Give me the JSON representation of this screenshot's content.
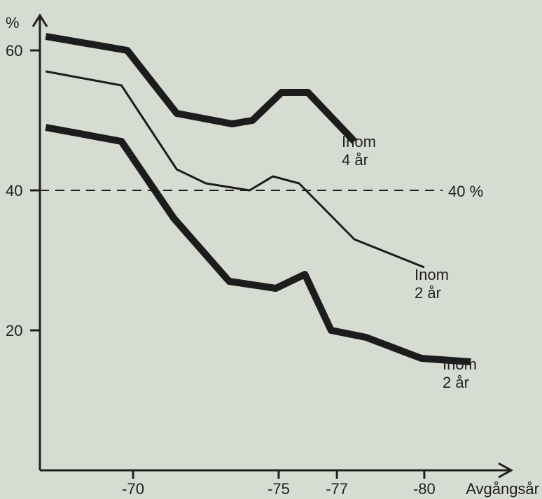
{
  "chart_data": {
    "type": "line",
    "y_unit": "%",
    "xlabel": "Avgångsår",
    "x_ticks": [
      {
        "value": 1970,
        "label": "-70"
      },
      {
        "value": 1975,
        "label": "-75"
      },
      {
        "value": 1977,
        "label": "-77"
      },
      {
        "value": 1980,
        "label": "-80"
      }
    ],
    "y_ticks": [
      {
        "value": 20,
        "label": "20"
      },
      {
        "value": 40,
        "label": "40"
      },
      {
        "value": 60,
        "label": "60"
      }
    ],
    "xlim": [
      1966.8,
      1982.6
    ],
    "ylim": [
      0,
      65
    ],
    "grid": false,
    "reference_line": {
      "value": 40,
      "label": "40 %",
      "style": "dashed"
    },
    "series": [
      {
        "label_lines": [
          "Inom",
          "4 år"
        ],
        "weight": "heavy",
        "x": [
          1967,
          1969.8,
          1971.5,
          1973.4,
          1974.1,
          1975.1,
          1976.0,
          1977.6
        ],
        "y": [
          62,
          60,
          51,
          49.5,
          50,
          54,
          54,
          47
        ]
      },
      {
        "label_lines": [
          "Inom",
          "2 år"
        ],
        "weight": "thin",
        "x": [
          1967,
          1969.6,
          1971.5,
          1972.5,
          1974.0,
          1974.8,
          1975.7,
          1977.6,
          1980.0
        ],
        "y": [
          57,
          55,
          43,
          41,
          40,
          42,
          41,
          33,
          29
        ]
      },
      {
        "label_lines": [
          "Inom",
          "2 år"
        ],
        "weight": "heavy",
        "x": [
          1967,
          1969.6,
          1971.4,
          1973.3,
          1974.9,
          1975.9,
          1976.8,
          1978.0,
          1979.9,
          1981.6
        ],
        "y": [
          49,
          47,
          36,
          27,
          26,
          28,
          20,
          19,
          16,
          15.5
        ]
      }
    ]
  }
}
